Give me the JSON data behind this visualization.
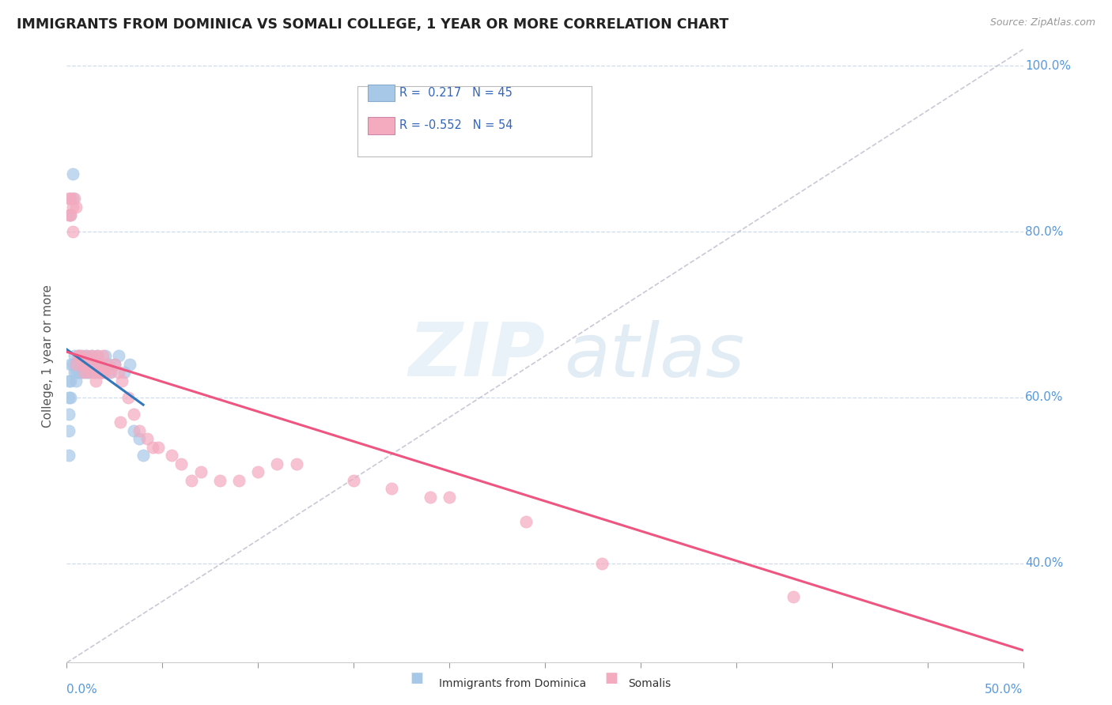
{
  "title": "IMMIGRANTS FROM DOMINICA VS SOMALI COLLEGE, 1 YEAR OR MORE CORRELATION CHART",
  "source": "Source: ZipAtlas.com",
  "ylabel": "College, 1 year or more",
  "legend_label1": "Immigrants from Dominica",
  "legend_label2": "Somalis",
  "blue_color": "#a8c8e8",
  "pink_color": "#f4aabf",
  "blue_line_color": "#3377bb",
  "pink_line_color": "#ee5580",
  "xlim": [
    0.0,
    0.5
  ],
  "ylim": [
    0.28,
    1.02
  ],
  "yticks": [
    0.4,
    0.6,
    0.8,
    1.0
  ],
  "ytick_labels": [
    "40.0%",
    "60.0%",
    "80.0%",
    "100.0%"
  ],
  "blue_x": [
    0.001,
    0.001,
    0.001,
    0.001,
    0.001,
    0.002,
    0.002,
    0.002,
    0.003,
    0.003,
    0.004,
    0.004,
    0.005,
    0.005,
    0.005,
    0.006,
    0.006,
    0.007,
    0.007,
    0.008,
    0.008,
    0.009,
    0.01,
    0.01,
    0.011,
    0.012,
    0.013,
    0.014,
    0.015,
    0.016,
    0.017,
    0.018,
    0.019,
    0.02,
    0.022,
    0.023,
    0.025,
    0.027,
    0.03,
    0.033,
    0.035,
    0.038,
    0.04,
    0.003,
    0.002
  ],
  "blue_y": [
    0.62,
    0.6,
    0.58,
    0.56,
    0.53,
    0.64,
    0.62,
    0.6,
    0.87,
    0.64,
    0.63,
    0.65,
    0.63,
    0.64,
    0.62,
    0.65,
    0.63,
    0.64,
    0.63,
    0.65,
    0.63,
    0.64,
    0.63,
    0.65,
    0.63,
    0.64,
    0.65,
    0.63,
    0.64,
    0.65,
    0.63,
    0.64,
    0.63,
    0.65,
    0.64,
    0.63,
    0.64,
    0.65,
    0.63,
    0.64,
    0.56,
    0.55,
    0.53,
    0.84,
    0.82
  ],
  "pink_x": [
    0.001,
    0.001,
    0.002,
    0.002,
    0.003,
    0.003,
    0.004,
    0.005,
    0.005,
    0.006,
    0.007,
    0.008,
    0.009,
    0.01,
    0.011,
    0.012,
    0.013,
    0.014,
    0.015,
    0.016,
    0.017,
    0.018,
    0.019,
    0.02,
    0.021,
    0.022,
    0.025,
    0.027,
    0.029,
    0.032,
    0.035,
    0.038,
    0.042,
    0.048,
    0.055,
    0.06,
    0.07,
    0.08,
    0.09,
    0.1,
    0.11,
    0.12,
    0.15,
    0.17,
    0.2,
    0.28,
    0.38,
    0.028,
    0.045,
    0.065,
    0.19,
    0.24,
    0.018,
    0.015
  ],
  "pink_y": [
    0.82,
    0.84,
    0.84,
    0.82,
    0.83,
    0.8,
    0.84,
    0.83,
    0.64,
    0.65,
    0.65,
    0.64,
    0.63,
    0.65,
    0.64,
    0.63,
    0.65,
    0.64,
    0.63,
    0.65,
    0.64,
    0.63,
    0.65,
    0.63,
    0.64,
    0.63,
    0.64,
    0.63,
    0.62,
    0.6,
    0.58,
    0.56,
    0.55,
    0.54,
    0.53,
    0.52,
    0.51,
    0.5,
    0.5,
    0.51,
    0.52,
    0.52,
    0.5,
    0.49,
    0.48,
    0.4,
    0.36,
    0.57,
    0.54,
    0.5,
    0.48,
    0.45,
    0.63,
    0.62
  ],
  "blue_trend": [
    0.0,
    0.04,
    0.6295,
    0.649
  ],
  "pink_trend_x0": 0.0,
  "pink_trend_y0": 0.655,
  "pink_trend_x1": 0.5,
  "pink_trend_y1": 0.295,
  "ref_line_x": [
    0.0,
    0.5
  ],
  "ref_line_y": [
    0.28,
    1.02
  ]
}
